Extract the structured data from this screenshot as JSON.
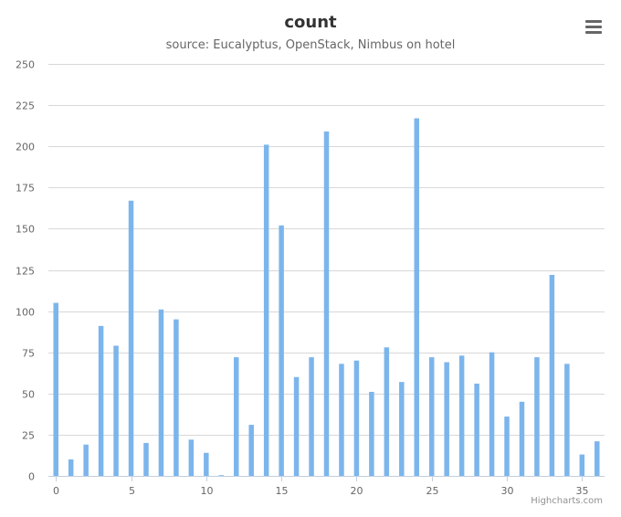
{
  "chart_data": {
    "type": "bar",
    "title": "count",
    "subtitle": "source: Eucalyptus, OpenStack, Nimbus on hotel",
    "xlabel": "",
    "ylabel": "",
    "x": [
      0,
      1,
      2,
      3,
      4,
      5,
      6,
      7,
      8,
      9,
      10,
      11,
      12,
      13,
      14,
      15,
      16,
      17,
      18,
      19,
      20,
      21,
      22,
      23,
      24,
      25,
      26,
      27,
      28,
      29,
      30,
      31,
      32,
      33,
      34,
      35,
      36
    ],
    "values": [
      105,
      10,
      19,
      91,
      79,
      167,
      20,
      101,
      95,
      22,
      14,
      0,
      72,
      31,
      201,
      152,
      60,
      72,
      209,
      68,
      70,
      51,
      78,
      57,
      217,
      72,
      69,
      73,
      56,
      75,
      36,
      45,
      72,
      122,
      68,
      13,
      21
    ],
    "ylim": [
      0,
      250
    ],
    "yticks": [
      0,
      25,
      50,
      75,
      100,
      125,
      150,
      175,
      200,
      225,
      250
    ],
    "xticks": [
      0,
      5,
      10,
      15,
      20,
      25,
      30,
      35
    ],
    "bar_color": "#7cb5ec",
    "grid": true,
    "legend": "none"
  },
  "credit": "Highcharts.com",
  "menu_icon": "hamburger-menu-icon"
}
